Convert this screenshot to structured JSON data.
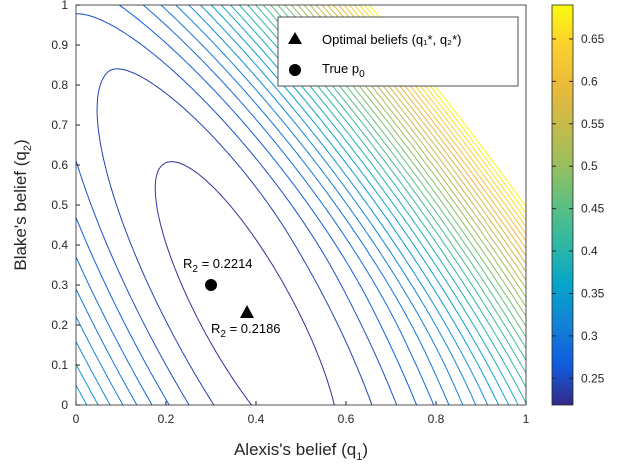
{
  "chart_data": {
    "type": "contour",
    "xlabel": {
      "main": "Alexis's belief (q",
      "sub": "1",
      "end": ")"
    },
    "ylabel": {
      "main": "Blake's belief (q",
      "sub": "2",
      "end": ")"
    },
    "xlim": [
      0,
      1
    ],
    "ylim": [
      0,
      1
    ],
    "xticks": [
      "0",
      "0.2",
      "0.4",
      "0.6",
      "0.8",
      "1"
    ],
    "yticks": [
      "0",
      "0.1",
      "0.2",
      "0.3",
      "0.4",
      "0.5",
      "0.6",
      "0.7",
      "0.8",
      "0.9",
      "1"
    ],
    "grid": false,
    "colormap": "parula",
    "colorbar": {
      "range": [
        0.2186,
        0.69
      ],
      "ticks": [
        "0.25",
        "0.3",
        "0.35",
        "0.4",
        "0.45",
        "0.5",
        "0.55",
        "0.6",
        "0.65"
      ]
    },
    "contour_levels": {
      "min": 0.2186,
      "max": 0.69,
      "count": 34
    },
    "minimum": {
      "q1": 0.38,
      "q2": 0.23,
      "value": 0.2186
    },
    "true_point": {
      "q1": 0.3,
      "q2": 0.3,
      "value": 0.2214
    },
    "legend": {
      "position": "top-right",
      "entries": [
        {
          "marker": "triangle",
          "label": "Optimal beliefs (q",
          "math": "₁*, q₂*",
          "end": ")"
        },
        {
          "marker": "circle",
          "label": "True p",
          "sub": "0"
        }
      ]
    },
    "annotations": [
      {
        "prefix": "R",
        "sub": "2",
        "text": " = 0.2214",
        "q1": 0.3,
        "q2": 0.3
      },
      {
        "prefix": "R",
        "sub": "2",
        "text": " = 0.2186",
        "q1": 0.38,
        "q2": 0.23
      }
    ]
  }
}
